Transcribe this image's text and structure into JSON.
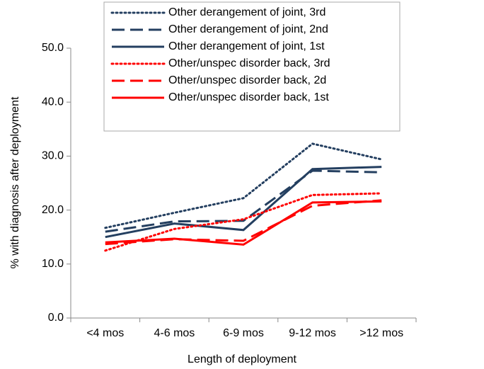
{
  "chart_data": {
    "type": "line",
    "x_label": "Length of deployment",
    "y_label": "% with diagnosis after deployment",
    "categories": [
      "<4 mos",
      "4-6 mos",
      "6-9 mos",
      "9-12 mos",
      ">12 mos"
    ],
    "ylim": [
      0,
      50
    ],
    "yticks": [
      {
        "value": 0,
        "label": "0.0"
      },
      {
        "value": 10,
        "label": "10.0"
      },
      {
        "value": 20,
        "label": "20.0"
      },
      {
        "value": 30,
        "label": "30.0"
      },
      {
        "value": 40,
        "label": "40.0"
      },
      {
        "value": 50,
        "label": "50.0"
      }
    ],
    "series": [
      {
        "name": "Other derangement of joint, 3rd",
        "color": "#243f60",
        "style": "dotted",
        "values": [
          16.7,
          19.5,
          22.2,
          32.3,
          29.4
        ]
      },
      {
        "name": "Other derangement of joint, 2nd",
        "color": "#243f60",
        "style": "dashed",
        "values": [
          16.0,
          17.9,
          18.0,
          27.3,
          27.0
        ]
      },
      {
        "name": "Other derangement of joint, 1st",
        "color": "#243f60",
        "style": "solid",
        "values": [
          15.0,
          17.5,
          16.3,
          27.6,
          28.0
        ]
      },
      {
        "name": "Other/unspec disorder back, 3rd",
        "color": "#ff0000",
        "style": "dotted",
        "values": [
          12.5,
          16.5,
          18.3,
          22.8,
          23.1
        ]
      },
      {
        "name": "Other/unspec disorder back, 2d",
        "color": "#ff0000",
        "style": "dashed",
        "values": [
          13.7,
          14.6,
          14.3,
          20.8,
          21.8
        ]
      },
      {
        "name": "Other/unspec disorder back, 1st",
        "color": "#ff0000",
        "style": "solid",
        "values": [
          14.0,
          14.7,
          13.6,
          21.4,
          21.6
        ]
      }
    ]
  }
}
